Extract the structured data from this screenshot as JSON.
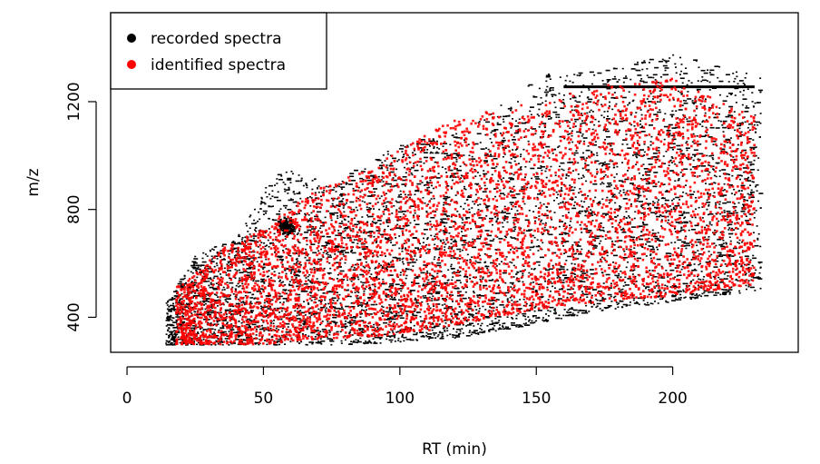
{
  "chart_data": {
    "type": "scatter",
    "title": "",
    "xlabel": "RT (min)",
    "ylabel": "m/z",
    "xlim": [
      -6,
      246
    ],
    "ylim": [
      270,
      1530
    ],
    "xticks": [
      0,
      50,
      100,
      150,
      200
    ],
    "yticks": [
      400,
      800,
      1200
    ],
    "grid": false,
    "legend": {
      "position": "top-left",
      "entries": [
        {
          "name": "recorded spectra",
          "color": "#000000"
        },
        {
          "name": "identified spectra",
          "color": "#ff0000"
        }
      ]
    },
    "series": [
      {
        "name": "recorded spectra",
        "color": "#000000",
        "x_range": [
          14,
          232
        ],
        "y_range": [
          300,
          1500
        ],
        "density_profile": [
          {
            "x": 15,
            "ymin": 300,
            "ymax": 470
          },
          {
            "x": 25,
            "ymin": 300,
            "ymax": 640
          },
          {
            "x": 40,
            "ymin": 300,
            "ymax": 700
          },
          {
            "x": 55,
            "ymin": 300,
            "ymax": 960
          },
          {
            "x": 75,
            "ymin": 300,
            "ymax": 900
          },
          {
            "x": 100,
            "ymin": 310,
            "ymax": 1050
          },
          {
            "x": 125,
            "ymin": 330,
            "ymax": 1100
          },
          {
            "x": 150,
            "ymin": 380,
            "ymax": 1300
          },
          {
            "x": 175,
            "ymin": 430,
            "ymax": 1330
          },
          {
            "x": 200,
            "ymin": 460,
            "ymax": 1380
          },
          {
            "x": 230,
            "ymin": 500,
            "ymax": 1300
          }
        ],
        "features": [
          {
            "label": "horizontal streak",
            "x_from": 160,
            "x_to": 230,
            "y": 1255
          },
          {
            "label": "cluster",
            "x": 58,
            "y": 740
          }
        ]
      },
      {
        "name": "identified spectra",
        "color": "#ff0000",
        "x_range": [
          18,
          230
        ],
        "y_range": [
          300,
          1310
        ],
        "density_profile": [
          {
            "x": 20,
            "ymin": 300,
            "ymax": 520
          },
          {
            "x": 35,
            "ymin": 300,
            "ymax": 660
          },
          {
            "x": 50,
            "ymin": 300,
            "ymax": 730
          },
          {
            "x": 70,
            "ymin": 320,
            "ymax": 880
          },
          {
            "x": 90,
            "ymin": 330,
            "ymax": 950
          },
          {
            "x": 110,
            "ymin": 350,
            "ymax": 1100
          },
          {
            "x": 130,
            "ymin": 390,
            "ymax": 1160
          },
          {
            "x": 150,
            "ymin": 430,
            "ymax": 1200
          },
          {
            "x": 175,
            "ymin": 460,
            "ymax": 1260
          },
          {
            "x": 200,
            "ymin": 480,
            "ymax": 1290
          },
          {
            "x": 228,
            "ymin": 520,
            "ymax": 1150
          }
        ]
      }
    ]
  }
}
